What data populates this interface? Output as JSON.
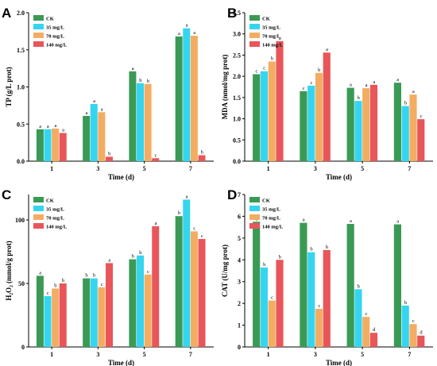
{
  "colors": {
    "CK": "#3a9a55",
    "35 mg/L": "#35d5f0",
    "70 mg/L": "#f3ad63",
    "140 mg/L": "#e8565a"
  },
  "chart_data": [
    {
      "type": "bar",
      "panel": "A",
      "categories": [
        "1",
        "3",
        "5",
        "7"
      ],
      "xlabel": "Time (d)",
      "ylabel": "TP (g/L prot)",
      "ylim": [
        0,
        2.0
      ],
      "yticks": [
        "0.0",
        "0.5",
        "1.0",
        "1.5",
        "2.0"
      ],
      "legend": "top-left",
      "series": [
        {
          "name": "CK",
          "values": [
            0.43,
            0.61,
            1.21,
            1.68
          ],
          "labels": [
            "a",
            "a",
            "a",
            "a"
          ]
        },
        {
          "name": "35 mg/L",
          "values": [
            0.43,
            0.77,
            1.05,
            1.79
          ],
          "labels": [
            "a",
            "a",
            "b",
            "a"
          ]
        },
        {
          "name": "70 mg/L",
          "values": [
            0.44,
            0.66,
            1.04,
            1.69
          ],
          "labels": [
            "a",
            "a",
            "b",
            "a"
          ]
        },
        {
          "name": "140 mg/L",
          "values": [
            0.38,
            0.06,
            0.04,
            0.08
          ],
          "labels": [
            "a",
            "b",
            "c",
            "b"
          ]
        }
      ]
    },
    {
      "type": "bar",
      "panel": "B",
      "categories": [
        "1",
        "3",
        "5",
        "7"
      ],
      "xlabel": "Time (d)",
      "ylabel": "MDA (nmol/mg prot)",
      "ylim": [
        0,
        3.5
      ],
      "yticks": [
        "0.0",
        "0.5",
        "1.0",
        "1.5",
        "2.0",
        "2.5",
        "3.0",
        "3.5"
      ],
      "legend": "top-left",
      "series": [
        {
          "name": "CK",
          "values": [
            2.05,
            1.65,
            1.73,
            1.85
          ],
          "labels": [
            "c",
            "c",
            "a",
            "a"
          ]
        },
        {
          "name": "35 mg/L",
          "values": [
            2.12,
            1.78,
            1.42,
            1.3
          ],
          "labels": [
            "c",
            "c",
            "b",
            "b"
          ]
        },
        {
          "name": "70 mg/L",
          "values": [
            2.35,
            2.08,
            1.72,
            1.57
          ],
          "labels": [
            "b",
            "b",
            "a",
            "a"
          ]
        },
        {
          "name": "140 mg/L",
          "values": [
            2.83,
            2.56,
            1.8,
            0.99
          ],
          "labels": [
            "a",
            "a",
            "a",
            "c"
          ]
        }
      ]
    },
    {
      "type": "bar",
      "panel": "C",
      "categories": [
        "1",
        "3",
        "5",
        "7"
      ],
      "xlabel": "Time (d)",
      "ylabel": "H₂O₂ (mmol/g prot)",
      "ylim": [
        0,
        120
      ],
      "yticks": [
        "0",
        "50",
        "100"
      ],
      "legend": "top-left",
      "series": [
        {
          "name": "CK",
          "values": [
            56,
            54,
            69,
            103
          ],
          "labels": [
            "a",
            "b",
            "b",
            "b"
          ]
        },
        {
          "name": "35 mg/L",
          "values": [
            40,
            54,
            72,
            116
          ],
          "labels": [
            "c",
            "b",
            "b",
            "a"
          ]
        },
        {
          "name": "70 mg/L",
          "values": [
            46,
            47,
            57,
            91
          ],
          "labels": [
            "b",
            "c",
            "c",
            "c"
          ]
        },
        {
          "name": "140 mg/L",
          "values": [
            50,
            66,
            95,
            85
          ],
          "labels": [
            "b",
            "a",
            "a",
            "c"
          ]
        }
      ]
    },
    {
      "type": "bar",
      "panel": "D",
      "categories": [
        "1",
        "3",
        "5",
        "7"
      ],
      "xlabel": "Time (d)",
      "ylabel": "CAT (U/mg prot)",
      "ylim": [
        0,
        7
      ],
      "yticks": [
        "0",
        "1",
        "2",
        "3",
        "4",
        "5",
        "6",
        "7"
      ],
      "legend": "top-left",
      "series": [
        {
          "name": "CK",
          "values": [
            5.75,
            5.7,
            5.65,
            5.63
          ],
          "labels": [
            "a",
            "a",
            "a",
            "a"
          ]
        },
        {
          "name": "35 mg/L",
          "values": [
            3.65,
            4.35,
            2.65,
            1.9
          ],
          "labels": [
            "b",
            "b",
            "b",
            "b"
          ]
        },
        {
          "name": "70 mg/L",
          "values": [
            2.13,
            1.75,
            1.38,
            1.05
          ],
          "labels": [
            "c",
            "c",
            "c",
            "c"
          ]
        },
        {
          "name": "140 mg/L",
          "values": [
            4.0,
            4.45,
            0.65,
            0.52
          ],
          "labels": [
            "b",
            "b",
            "d",
            "d"
          ]
        }
      ]
    }
  ]
}
